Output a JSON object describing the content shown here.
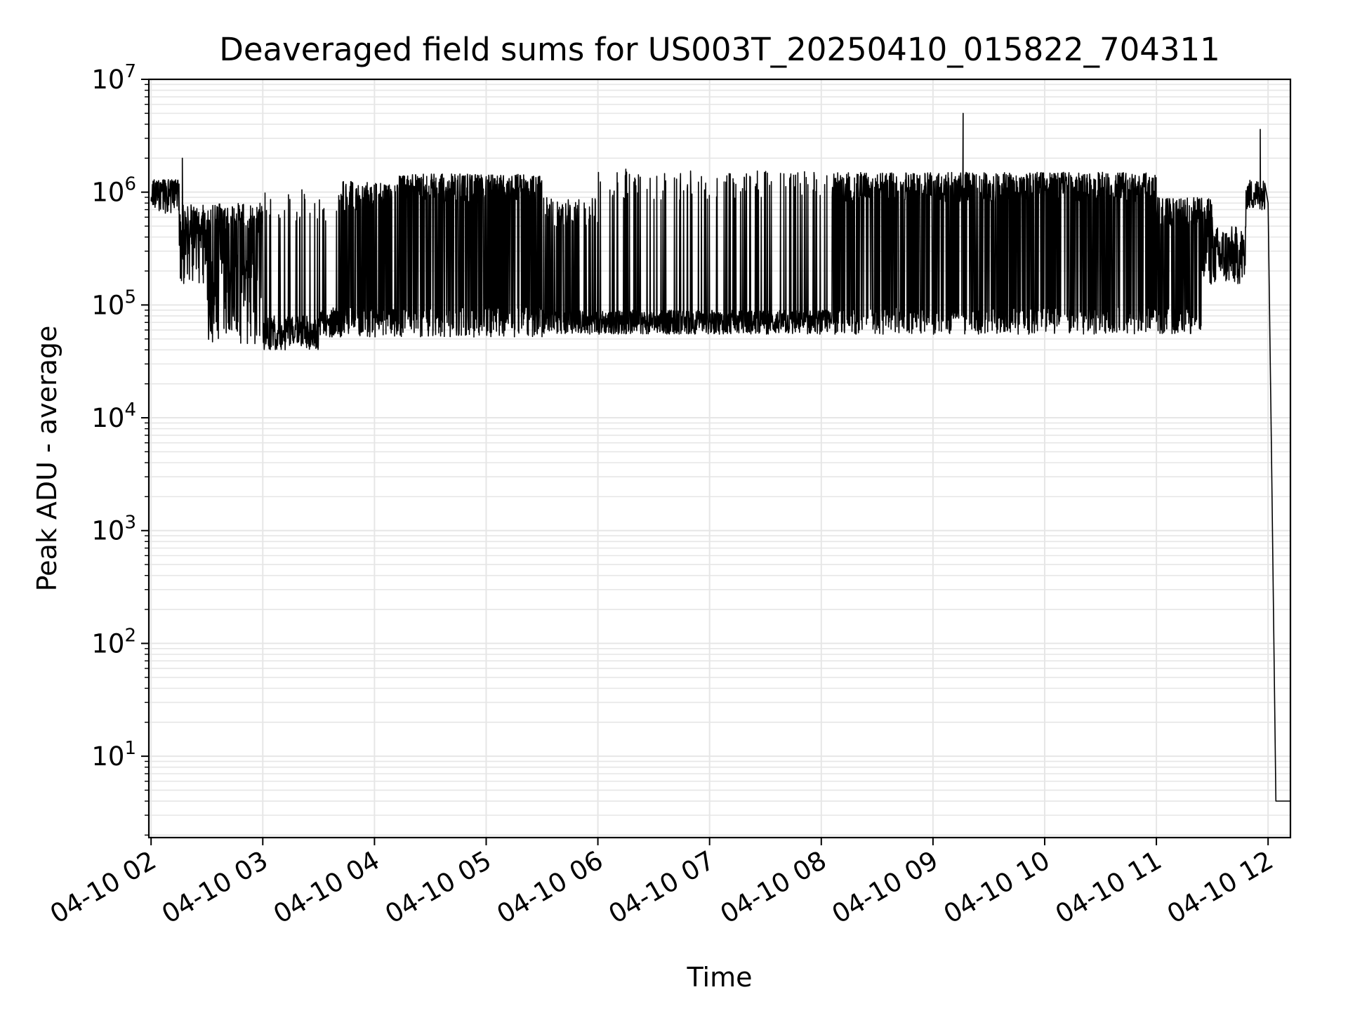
{
  "chart_data": {
    "type": "line",
    "title": "Deaveraged field sums for US003T_20250410_015822_704311",
    "xlabel": "Time",
    "ylabel": "Peak ADU - average",
    "yscale": "log",
    "ylim": [
      1.9,
      10000000
    ],
    "xlim_hours": [
      1.98,
      12.2
    ],
    "grid": true,
    "legend": "none",
    "line_color": "#000000",
    "x_ticks": [
      {
        "hour": 2,
        "label": "04-10 02"
      },
      {
        "hour": 3,
        "label": "04-10 03"
      },
      {
        "hour": 4,
        "label": "04-10 04"
      },
      {
        "hour": 5,
        "label": "04-10 05"
      },
      {
        "hour": 6,
        "label": "04-10 06"
      },
      {
        "hour": 7,
        "label": "04-10 07"
      },
      {
        "hour": 8,
        "label": "04-10 08"
      },
      {
        "hour": 9,
        "label": "04-10 09"
      },
      {
        "hour": 10,
        "label": "04-10 10"
      },
      {
        "hour": 11,
        "label": "04-10 11"
      },
      {
        "hour": 12,
        "label": "04-10 12"
      }
    ],
    "y_ticks": [
      {
        "value": 10,
        "base": "10",
        "exp": "1"
      },
      {
        "value": 100,
        "base": "10",
        "exp": "2"
      },
      {
        "value": 1000,
        "base": "10",
        "exp": "3"
      },
      {
        "value": 10000,
        "base": "10",
        "exp": "4"
      },
      {
        "value": 100000,
        "base": "10",
        "exp": "5"
      },
      {
        "value": 1000000,
        "base": "10",
        "exp": "6"
      },
      {
        "value": 10000000,
        "base": "10",
        "exp": "7"
      }
    ],
    "baseline_segments": [
      {
        "start_hour": 2.0,
        "end_hour": 2.25,
        "low": 650000,
        "high": 1300000
      },
      {
        "start_hour": 2.25,
        "end_hour": 2.5,
        "low": 150000,
        "high": 800000
      },
      {
        "start_hour": 2.5,
        "end_hour": 3.0,
        "low": 45000,
        "high": 300000
      },
      {
        "start_hour": 3.0,
        "end_hour": 3.5,
        "low": 40000,
        "high": 80000
      },
      {
        "start_hour": 3.5,
        "end_hour": 5.6,
        "low": 52000,
        "high": 95000
      },
      {
        "start_hour": 5.6,
        "end_hour": 8.1,
        "low": 55000,
        "high": 90000
      },
      {
        "start_hour": 8.1,
        "end_hour": 11.4,
        "low": 55000,
        "high": 95000
      },
      {
        "start_hour": 11.4,
        "end_hour": 11.8,
        "low": 150000,
        "high": 500000
      },
      {
        "start_hour": 11.8,
        "end_hour": 11.97,
        "low": 700000,
        "high": 1300000
      }
    ],
    "spike_bands": [
      {
        "start_hour": 2.3,
        "end_hour": 3.0,
        "peak": 800000,
        "density": 0.45
      },
      {
        "start_hour": 3.0,
        "end_hour": 3.7,
        "peak": 1000000,
        "density": 0.08
      },
      {
        "start_hour": 3.7,
        "end_hour": 4.2,
        "peak": 1250000,
        "density": 0.45
      },
      {
        "start_hour": 4.2,
        "end_hour": 5.5,
        "peak": 1450000,
        "density": 0.6
      },
      {
        "start_hour": 5.5,
        "end_hour": 6.0,
        "peak": 900000,
        "density": 0.3
      },
      {
        "start_hour": 6.0,
        "end_hour": 8.1,
        "peak": 1550000,
        "density": 0.12
      },
      {
        "start_hour": 8.1,
        "end_hour": 11.0,
        "peak": 1500000,
        "density": 0.6
      },
      {
        "start_hour": 11.0,
        "end_hour": 11.5,
        "peak": 900000,
        "density": 0.5
      }
    ],
    "notable_points": [
      {
        "hour": 2.28,
        "value": 2000000
      },
      {
        "hour": 3.35,
        "value": 1050000
      },
      {
        "hour": 6.25,
        "value": 1600000
      },
      {
        "hour": 9.27,
        "value": 5000000
      },
      {
        "hour": 11.93,
        "value": 3600000
      }
    ],
    "tail": [
      {
        "hour": 11.97,
        "value": 1200000
      },
      {
        "hour": 12.0,
        "value": 800000
      },
      {
        "hour": 12.03,
        "value": 5000
      },
      {
        "hour": 12.07,
        "value": 4
      },
      {
        "hour": 12.2,
        "value": 4
      }
    ]
  }
}
